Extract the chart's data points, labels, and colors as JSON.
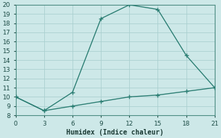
{
  "xlabel": "Humidex (Indice chaleur)",
  "line1_x": [
    0,
    3,
    6,
    9,
    12,
    15,
    18,
    21
  ],
  "line1_y": [
    10,
    8.5,
    10.5,
    18.5,
    20.0,
    19.5,
    14.5,
    11
  ],
  "line2_x": [
    0,
    3,
    6,
    9,
    12,
    15,
    18,
    21
  ],
  "line2_y": [
    10,
    8.5,
    9.0,
    9.5,
    10.0,
    10.2,
    10.6,
    11
  ],
  "line_color": "#2a7d72",
  "bg_color": "#cde8e8",
  "grid_color": "#aacfcf",
  "xlim": [
    0,
    21
  ],
  "ylim": [
    8,
    20
  ],
  "xticks": [
    0,
    3,
    6,
    9,
    12,
    15,
    18,
    21
  ],
  "yticks": [
    8,
    9,
    10,
    11,
    12,
    13,
    14,
    15,
    16,
    17,
    18,
    19,
    20
  ],
  "marker": "+",
  "marker_size": 4,
  "linewidth": 1.0,
  "xlabel_fontsize": 7,
  "tick_labelsize": 6.5
}
